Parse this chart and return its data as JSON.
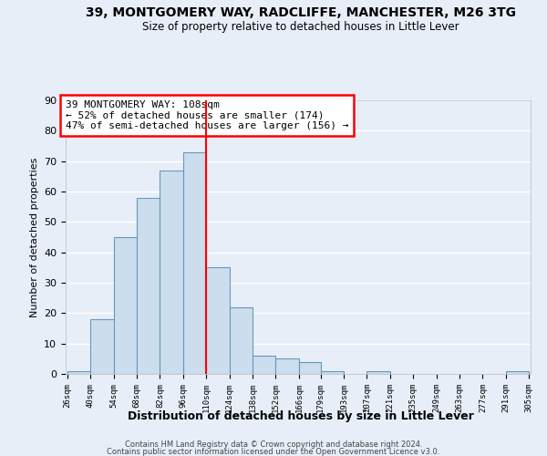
{
  "title": "39, MONTGOMERY WAY, RADCLIFFE, MANCHESTER, M26 3TG",
  "subtitle": "Size of property relative to detached houses in Little Lever",
  "xlabel": "Distribution of detached houses by size in Little Lever",
  "ylabel": "Number of detached properties",
  "bin_edges": [
    26,
    40,
    54,
    68,
    82,
    96,
    110,
    124,
    138,
    152,
    166,
    179,
    193,
    207,
    221,
    235,
    249,
    263,
    277,
    291,
    305
  ],
  "bin_values": [
    1,
    18,
    45,
    58,
    67,
    73,
    35,
    22,
    6,
    5,
    4,
    1,
    0,
    1,
    0,
    0,
    0,
    0,
    0,
    1
  ],
  "bar_color": "#ccdded",
  "bar_edge_color": "#6699bb",
  "ref_line_x": 110,
  "ref_line_color": "red",
  "ylim": [
    0,
    90
  ],
  "yticks": [
    0,
    10,
    20,
    30,
    40,
    50,
    60,
    70,
    80,
    90
  ],
  "annotation_text": "39 MONTGOMERY WAY: 108sqm\n← 52% of detached houses are smaller (174)\n47% of semi-detached houses are larger (156) →",
  "annotation_box_color": "#ffffff",
  "annotation_box_edge_color": "red",
  "footer_line1": "Contains HM Land Registry data © Crown copyright and database right 2024.",
  "footer_line2": "Contains public sector information licensed under the Open Government Licence v3.0.",
  "background_color": "#e8eef8",
  "grid_color": "#ffffff",
  "plot_bg_color": "#e8eef8"
}
